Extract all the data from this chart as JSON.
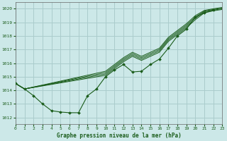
{
  "title": "Graphe pression niveau de la mer (hPa)",
  "bg_color": "#cce8e8",
  "grid_color": "#aacccc",
  "line_color": "#1a5c1a",
  "marker_color": "#1a5c1a",
  "xlim": [
    0,
    23
  ],
  "ylim": [
    1011.5,
    1020.5
  ],
  "yticks": [
    1012,
    1013,
    1014,
    1015,
    1016,
    1017,
    1018,
    1019,
    1020
  ],
  "xticks": [
    0,
    1,
    2,
    3,
    4,
    5,
    6,
    7,
    8,
    9,
    10,
    11,
    12,
    13,
    14,
    15,
    16,
    17,
    18,
    19,
    20,
    21,
    22,
    23
  ],
  "series_main": [
    1014.5,
    1014.1,
    1013.6,
    1013.0,
    1012.5,
    1012.4,
    1012.35,
    1012.35,
    1013.6,
    1014.1,
    1015.0,
    1015.5,
    1015.9,
    1015.35,
    1015.4,
    1015.9,
    1016.3,
    1017.1,
    1018.0,
    1018.5,
    1019.4,
    1019.7,
    1019.9,
    null
  ],
  "series_upper": [
    [
      1014.5,
      1014.1,
      null,
      null,
      null,
      null,
      null,
      null,
      null,
      null,
      1015.1,
      1015.6,
      1016.1,
      1016.5,
      1016.2,
      1016.5,
      1016.8,
      1017.6,
      1018.1,
      1018.6,
      1019.2,
      1019.7,
      1019.85,
      1019.95
    ],
    [
      1014.5,
      1014.1,
      null,
      null,
      null,
      null,
      null,
      null,
      null,
      null,
      1015.2,
      1015.7,
      1016.2,
      1016.6,
      1016.3,
      1016.6,
      1016.9,
      1017.7,
      1018.2,
      1018.7,
      1019.3,
      1019.78,
      1019.9,
      1020.0
    ],
    [
      1014.5,
      1014.1,
      null,
      null,
      null,
      null,
      null,
      null,
      null,
      null,
      1015.3,
      1015.8,
      1016.3,
      1016.7,
      1016.4,
      1016.7,
      1017.0,
      1017.8,
      1018.3,
      1018.8,
      1019.4,
      1019.83,
      1019.95,
      1020.05
    ],
    [
      1014.5,
      1014.1,
      null,
      null,
      null,
      null,
      null,
      null,
      null,
      null,
      1015.4,
      1015.9,
      1016.4,
      1016.8,
      1016.5,
      1016.8,
      1017.1,
      1017.9,
      1018.4,
      1018.9,
      1019.5,
      1019.88,
      1020.0,
      1020.1
    ]
  ]
}
